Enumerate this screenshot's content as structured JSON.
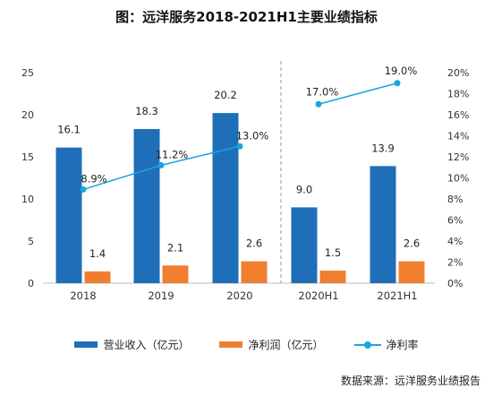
{
  "chart_data": {
    "type": "bar",
    "title": "图：远洋服务2018-2021H1主要业绩指标",
    "categories": [
      "2018",
      "2019",
      "2020",
      "2020H1",
      "2021H1"
    ],
    "series": [
      {
        "name": "营业收入（亿元）",
        "kind": "bar",
        "axis": "left",
        "color": "#1f6fb8",
        "values": [
          16.1,
          18.3,
          20.2,
          9.0,
          13.9
        ],
        "labels": [
          "16.1",
          "18.3",
          "20.2",
          "9.0",
          "13.9"
        ]
      },
      {
        "name": "净利润（亿元）",
        "kind": "bar",
        "axis": "left",
        "color": "#ef7f2f",
        "values": [
          1.4,
          2.1,
          2.6,
          1.5,
          2.6
        ],
        "labels": [
          "1.4",
          "2.1",
          "2.6",
          "1.5",
          "2.6"
        ]
      },
      {
        "name": "净利率",
        "kind": "line",
        "axis": "right",
        "color": "#1aa3e0",
        "values": [
          8.9,
          11.2,
          13.0,
          17.0,
          19.0
        ],
        "labels": [
          "8.9%",
          "11.2%",
          "13.0%",
          "17.0%",
          "19.0%"
        ]
      }
    ],
    "left_axis": {
      "ylim": [
        0,
        25
      ],
      "ticks": [
        "0",
        "5",
        "10",
        "15",
        "20",
        "25"
      ]
    },
    "right_axis": {
      "ylim": [
        0,
        20
      ],
      "ticks": [
        "0%",
        "2%",
        "4%",
        "6%",
        "8%",
        "10%",
        "12%",
        "14%",
        "16%",
        "18%",
        "20%"
      ]
    },
    "grid": false,
    "divider_between_groups": "dashed vertical line between 2020 and 2020H1",
    "legend_position": "bottom",
    "source": "数据来源：远洋服务业绩报告"
  }
}
